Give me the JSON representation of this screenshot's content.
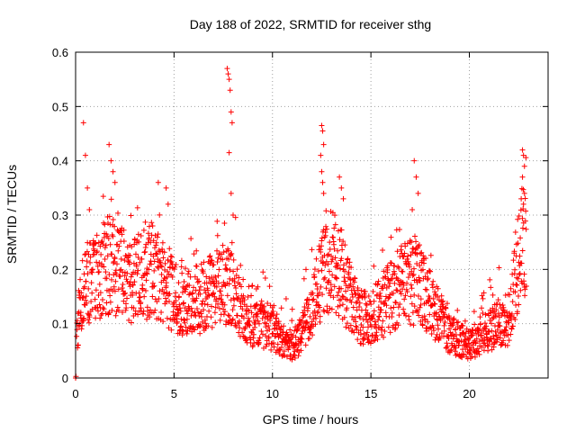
{
  "chart_data": {
    "type": "scatter",
    "title": "Day 188 of 2022, SRMTID for receiver sthg",
    "xlabel": "GPS time / hours",
    "ylabel": "SRMTID / TECUs",
    "xlim": [
      0,
      24
    ],
    "ylim": [
      0,
      0.6
    ],
    "xticks": [
      0,
      5,
      10,
      15,
      20
    ],
    "yticks": [
      0,
      0.1,
      0.2,
      0.3,
      0.4,
      0.5,
      0.6
    ],
    "grid": true,
    "marker": "+",
    "marker_color": "#ff0000",
    "series": [
      {
        "name": "SRMTID",
        "baseline_profile": [
          [
            0.0,
            0.05
          ],
          [
            0.2,
            0.13
          ],
          [
            0.5,
            0.17
          ],
          [
            1.0,
            0.18
          ],
          [
            1.5,
            0.21
          ],
          [
            2.0,
            0.2
          ],
          [
            2.5,
            0.19
          ],
          [
            3.0,
            0.18
          ],
          [
            3.5,
            0.19
          ],
          [
            4.0,
            0.2
          ],
          [
            4.5,
            0.18
          ],
          [
            5.0,
            0.15
          ],
          [
            5.5,
            0.14
          ],
          [
            6.0,
            0.14
          ],
          [
            6.5,
            0.15
          ],
          [
            7.0,
            0.16
          ],
          [
            7.5,
            0.17
          ],
          [
            8.0,
            0.18
          ],
          [
            8.3,
            0.14
          ],
          [
            8.7,
            0.11
          ],
          [
            9.0,
            0.09
          ],
          [
            9.5,
            0.1
          ],
          [
            10.0,
            0.09
          ],
          [
            10.5,
            0.07
          ],
          [
            11.0,
            0.06
          ],
          [
            11.5,
            0.08
          ],
          [
            12.0,
            0.12
          ],
          [
            12.5,
            0.19
          ],
          [
            13.0,
            0.22
          ],
          [
            13.5,
            0.19
          ],
          [
            14.0,
            0.14
          ],
          [
            14.5,
            0.11
          ],
          [
            15.0,
            0.11
          ],
          [
            15.5,
            0.13
          ],
          [
            16.0,
            0.15
          ],
          [
            16.5,
            0.17
          ],
          [
            17.0,
            0.18
          ],
          [
            17.5,
            0.17
          ],
          [
            18.0,
            0.14
          ],
          [
            18.5,
            0.11
          ],
          [
            19.0,
            0.08
          ],
          [
            19.5,
            0.07
          ],
          [
            20.0,
            0.06
          ],
          [
            20.5,
            0.07
          ],
          [
            21.0,
            0.09
          ],
          [
            21.5,
            0.1
          ],
          [
            22.0,
            0.11
          ],
          [
            22.3,
            0.18
          ],
          [
            22.7,
            0.25
          ],
          [
            22.9,
            0.26
          ]
        ],
        "spikes": [
          [
            0.4,
            0.47
          ],
          [
            0.5,
            0.41
          ],
          [
            0.6,
            0.35
          ],
          [
            0.7,
            0.31
          ],
          [
            1.7,
            0.43
          ],
          [
            1.8,
            0.4
          ],
          [
            1.9,
            0.38
          ],
          [
            2.0,
            0.36
          ],
          [
            4.2,
            0.36
          ],
          [
            4.6,
            0.35
          ],
          [
            4.7,
            0.32
          ],
          [
            7.7,
            0.57
          ],
          [
            7.75,
            0.56
          ],
          [
            7.8,
            0.55
          ],
          [
            7.85,
            0.53
          ],
          [
            7.9,
            0.49
          ],
          [
            7.95,
            0.47
          ],
          [
            7.8,
            0.415
          ],
          [
            7.9,
            0.34
          ],
          [
            8.0,
            0.3
          ],
          [
            12.5,
            0.465
          ],
          [
            12.55,
            0.455
          ],
          [
            12.6,
            0.43
          ],
          [
            12.45,
            0.41
          ],
          [
            12.5,
            0.38
          ],
          [
            12.55,
            0.36
          ],
          [
            12.6,
            0.34
          ],
          [
            13.4,
            0.37
          ],
          [
            13.5,
            0.35
          ],
          [
            13.6,
            0.33
          ],
          [
            17.2,
            0.4
          ],
          [
            17.3,
            0.37
          ],
          [
            17.4,
            0.34
          ],
          [
            17.1,
            0.31
          ],
          [
            22.7,
            0.42
          ],
          [
            22.75,
            0.41
          ],
          [
            22.8,
            0.39
          ],
          [
            22.7,
            0.37
          ],
          [
            22.8,
            0.34
          ],
          [
            22.75,
            0.32
          ]
        ]
      }
    ]
  }
}
